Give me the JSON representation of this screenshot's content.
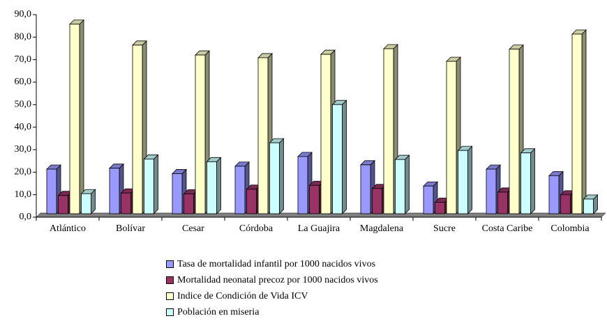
{
  "chart_data": {
    "type": "bar3d",
    "categories": [
      "Atlántico",
      "Bolívar",
      "Cesar",
      "Córdoba",
      "La Guajira",
      "Magdalena",
      "Sucre",
      "Costa Caribe",
      "Colombia"
    ],
    "series": [
      {
        "name": "Tasa de mortalidad infantil por 1000 nacidos vivos",
        "color": "#9999ff",
        "values": [
          19.8,
          20.2,
          17.8,
          21.1,
          25.4,
          21.7,
          12.3,
          19.8,
          16.9
        ]
      },
      {
        "name": "Mortalidad neonatal precoz por 1000 nacidos vivos",
        "color": "#993366",
        "values": [
          8.1,
          9.2,
          8.8,
          10.9,
          12.6,
          11.2,
          5.1,
          9.6,
          8.4
        ]
      },
      {
        "name": "Indice de Condición de Vida ICV",
        "color": "#ffffcc",
        "values": [
          84.2,
          74.9,
          70.5,
          69.3,
          70.8,
          73.3,
          67.7,
          73.1,
          79.8
        ]
      },
      {
        "name": "Población en miseria",
        "color": "#ccffff",
        "values": [
          8.9,
          24.3,
          23.1,
          31.5,
          48.5,
          24.1,
          28.1,
          27.0,
          6.5
        ]
      }
    ],
    "ylim": [
      0,
      90
    ],
    "yticks": [
      {
        "value": 0,
        "label": "0,0"
      },
      {
        "value": 10,
        "label": "10,0"
      },
      {
        "value": 20,
        "label": "20,0"
      },
      {
        "value": 30,
        "label": "30,0"
      },
      {
        "value": 40,
        "label": "40,0"
      },
      {
        "value": 50,
        "label": "50,0"
      },
      {
        "value": 60,
        "label": "60,0"
      },
      {
        "value": 70,
        "label": "70,0"
      },
      {
        "value": 80,
        "label": "80,0"
      },
      {
        "value": 90,
        "label": "90,0"
      }
    ],
    "legend": "bottom"
  }
}
